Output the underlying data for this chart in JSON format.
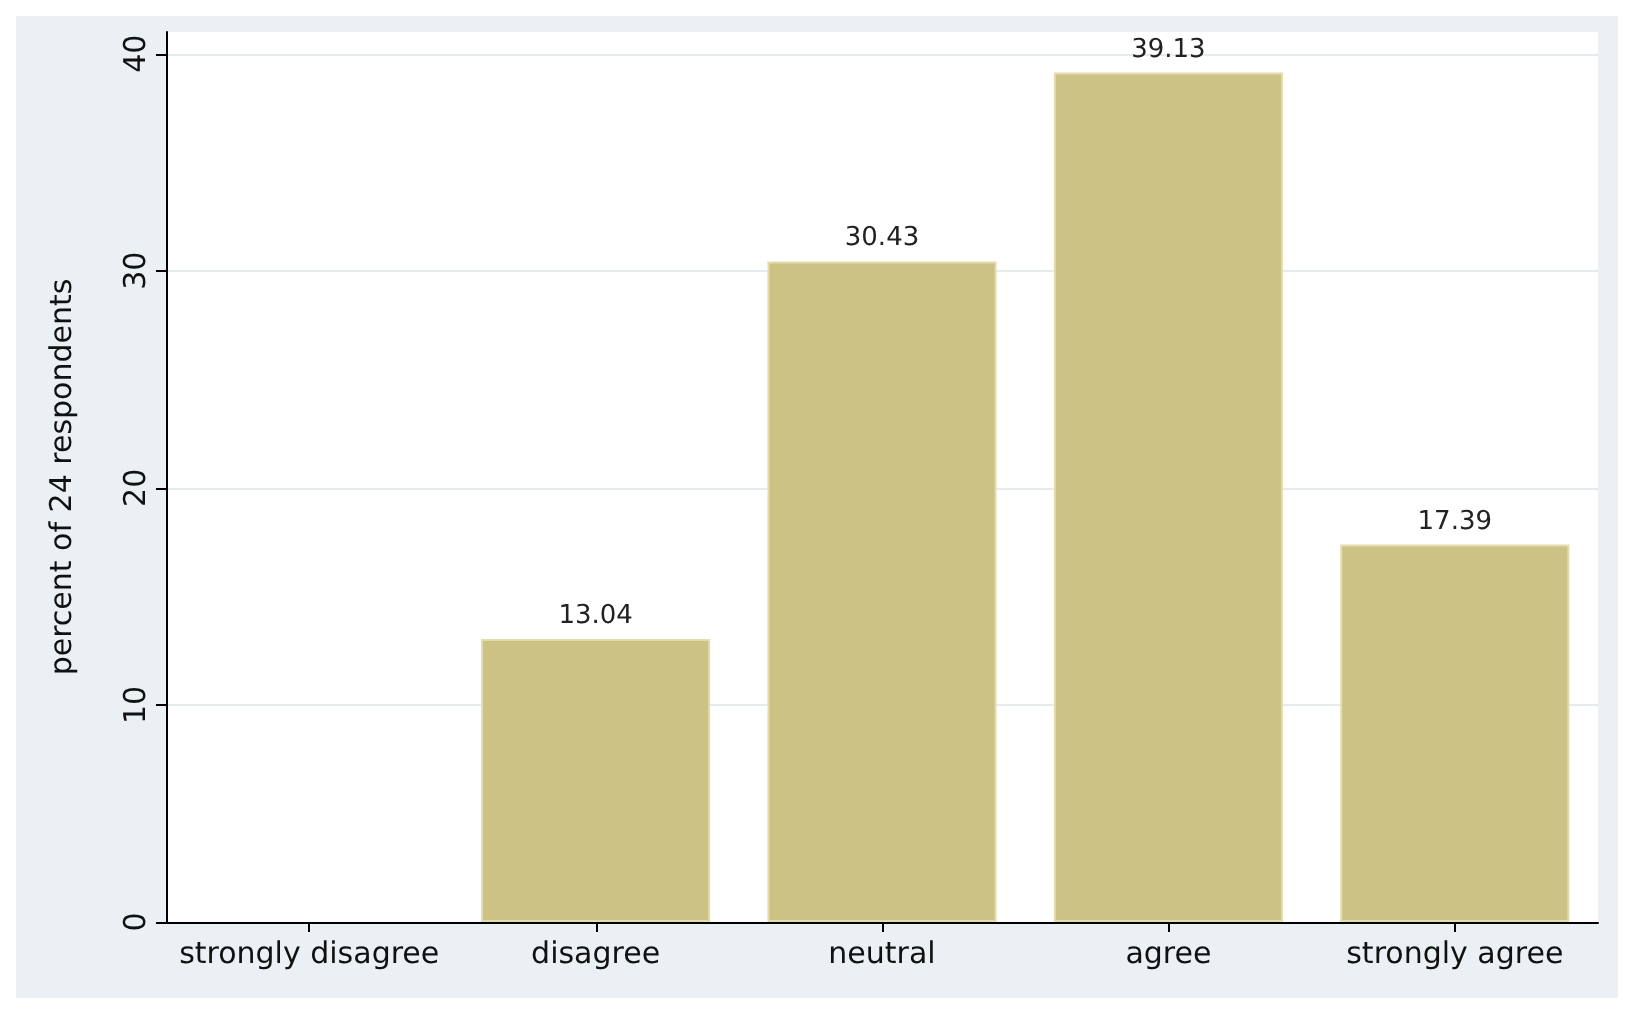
{
  "chart_data": {
    "type": "bar",
    "ylabel": "percent of 24 respondents",
    "categories": [
      "strongly disagree",
      "disagree",
      "neutral",
      "agree",
      "strongly agree"
    ],
    "values": [
      0,
      13.04,
      30.43,
      39.13,
      17.39
    ],
    "value_labels": [
      null,
      "13.04",
      "30.43",
      "39.13",
      "17.39"
    ],
    "color": "#ccc283",
    "ylim": [
      0,
      41
    ],
    "yticks": [
      0,
      10,
      20,
      30,
      40
    ],
    "grid": "y"
  }
}
